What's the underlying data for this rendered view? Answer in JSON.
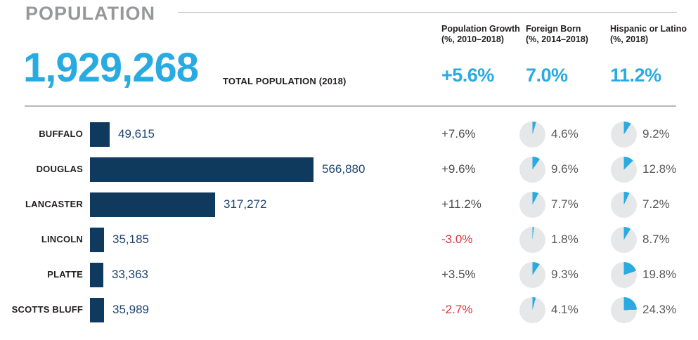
{
  "colors": {
    "cyan": "#29ABE2",
    "navy_bar": "#103A5D",
    "navy_text": "#1D4470",
    "red": "#D7353F",
    "pie_gray": "#E6E7E8",
    "title_gray": "#97989A",
    "text_dark": "#231F20",
    "percent_gray": "#58595B"
  },
  "header": {
    "title": "POPULATION",
    "total_value": "1,929,268",
    "total_label": "TOTAL POPULATION (2018)",
    "columns": [
      {
        "label_line1": "Population Growth",
        "label_line2": "(%, 2010–2018)",
        "summary": "+5.6%"
      },
      {
        "label_line1": "Foreign Born",
        "label_line2": "(%, 2014–2018)",
        "summary": "7.0%"
      },
      {
        "label_line1": "Hispanic or Latino",
        "label_line2": "(%, 2018)",
        "summary": "11.2%"
      }
    ]
  },
  "rows": [
    {
      "county": "BUFFALO",
      "population": "49,615",
      "population_value": 49615,
      "growth": "+7.6%",
      "growth_negative": false,
      "foreign_born": "4.6%",
      "foreign_born_value": 4.6,
      "hispanic": "9.2%",
      "hispanic_value": 9.2
    },
    {
      "county": "DOUGLAS",
      "population": "566,880",
      "population_value": 566880,
      "growth": "+9.6%",
      "growth_negative": false,
      "foreign_born": "9.6%",
      "foreign_born_value": 9.6,
      "hispanic": "12.8%",
      "hispanic_value": 12.8
    },
    {
      "county": "LANCASTER",
      "population": "317,272",
      "population_value": 317272,
      "growth": "+11.2%",
      "growth_negative": false,
      "foreign_born": "7.7%",
      "foreign_born_value": 7.7,
      "hispanic": "7.2%",
      "hispanic_value": 7.2
    },
    {
      "county": "LINCOLN",
      "population": "35,185",
      "population_value": 35185,
      "growth": "-3.0%",
      "growth_negative": true,
      "foreign_born": "1.8%",
      "foreign_born_value": 1.8,
      "hispanic": "8.7%",
      "hispanic_value": 8.7
    },
    {
      "county": "PLATTE",
      "population": "33,363",
      "population_value": 33363,
      "growth": "+3.5%",
      "growth_negative": false,
      "foreign_born": "9.3%",
      "foreign_born_value": 9.3,
      "hispanic": "19.8%",
      "hispanic_value": 19.8
    },
    {
      "county": "SCOTTS BLUFF",
      "population": "35,989",
      "population_value": 35989,
      "growth": "-2.7%",
      "growth_negative": true,
      "foreign_born": "4.1%",
      "foreign_born_value": 4.1,
      "hispanic": "24.3%",
      "hispanic_value": 24.3
    }
  ],
  "chart_data": {
    "type": "bar",
    "title": "POPULATION",
    "total_population_2018": 1929268,
    "categories": [
      "Buffalo",
      "Douglas",
      "Lancaster",
      "Lincoln",
      "Platte",
      "Scotts Bluff"
    ],
    "series": [
      {
        "name": "Total Population (2018)",
        "values": [
          49615,
          566880,
          317272,
          35185,
          33363,
          35989
        ]
      },
      {
        "name": "Population Growth (%, 2010–2018)",
        "values": [
          7.6,
          9.6,
          11.2,
          -3.0,
          3.5,
          -2.7
        ]
      },
      {
        "name": "Foreign Born (%, 2014–2018)",
        "values": [
          4.6,
          9.6,
          7.7,
          1.8,
          9.3,
          4.1
        ]
      },
      {
        "name": "Hispanic or Latino (%, 2018)",
        "values": [
          9.2,
          12.8,
          7.2,
          8.7,
          19.8,
          24.3
        ]
      }
    ],
    "summary_values": {
      "population_growth": 5.6,
      "foreign_born": 7.0,
      "hispanic_or_latino": 11.2
    },
    "xlabel": "",
    "ylabel": "",
    "grid": false,
    "legend_position": "none",
    "orientation": "horizontal",
    "xlim": [
      0,
      566880
    ]
  }
}
